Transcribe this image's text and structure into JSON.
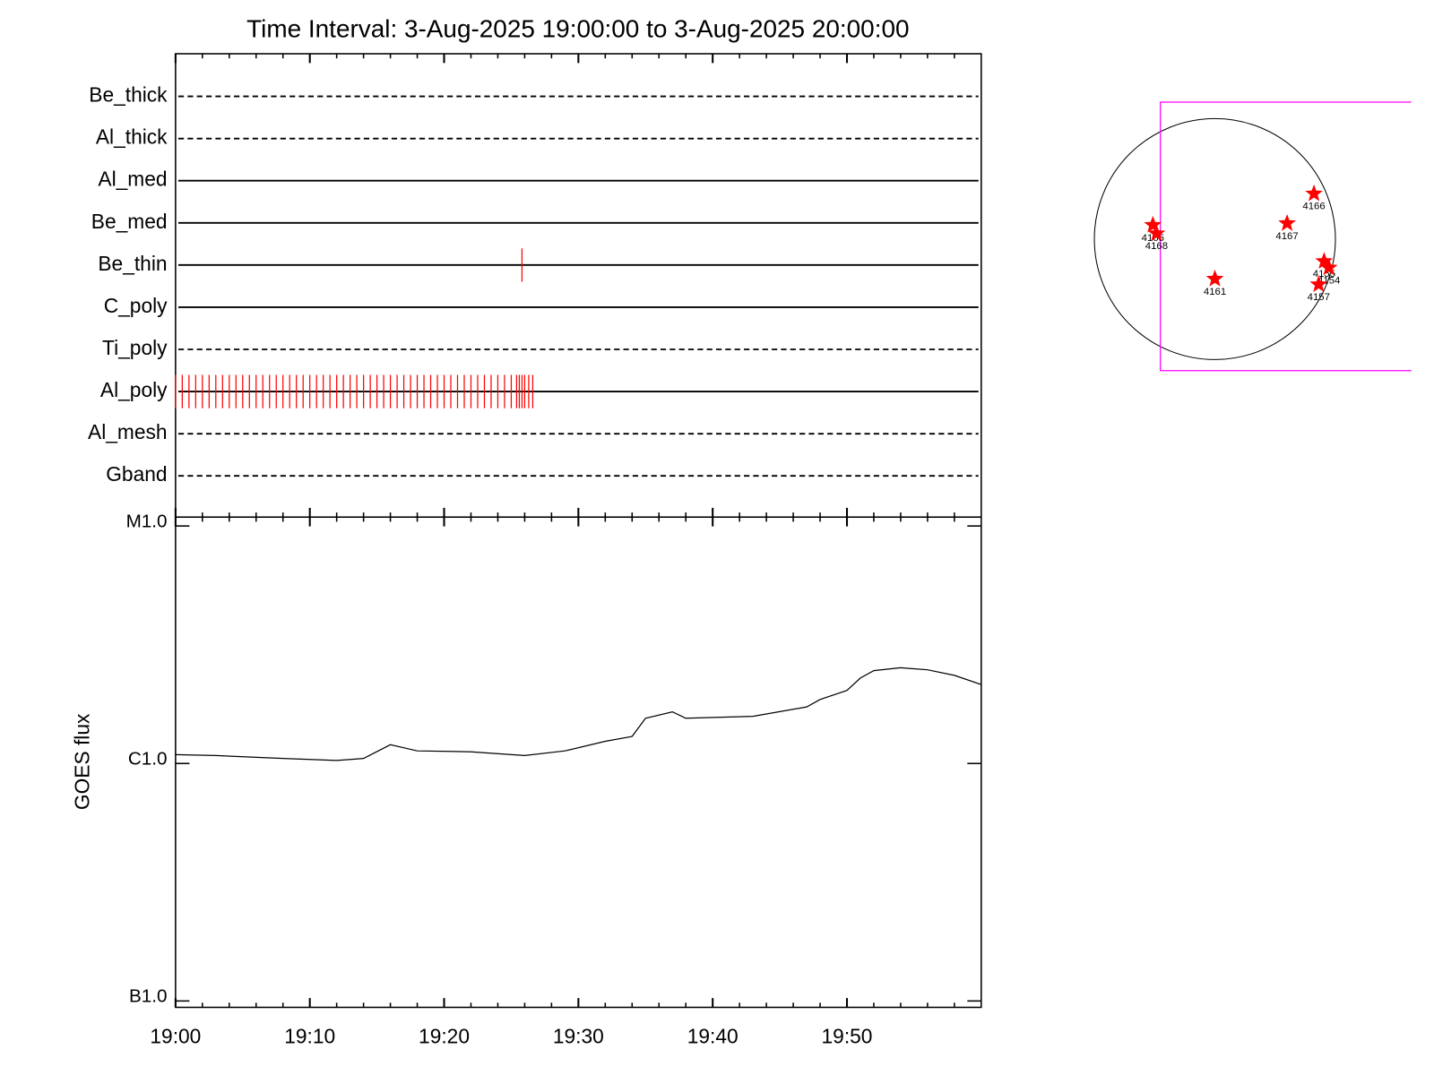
{
  "chart_data": [
    {
      "type": "timeline",
      "title": "Time Interval:  3-Aug-2025 19:00:00 to  3-Aug-2025 20:00:00",
      "xlim": [
        0,
        60
      ],
      "xticks": [
        0,
        10,
        20,
        30,
        40,
        50
      ],
      "xminorticks": [
        2,
        4,
        6,
        8,
        12,
        14,
        16,
        18,
        22,
        24,
        26,
        28,
        32,
        34,
        36,
        38,
        42,
        44,
        46,
        48,
        52,
        54,
        56,
        58
      ],
      "event_color": "#ff0000",
      "series": [
        {
          "name": "Be_thick",
          "line_style": "dashed",
          "x": []
        },
        {
          "name": "Al_thick",
          "line_style": "dashed",
          "x": []
        },
        {
          "name": "Al_med",
          "line_style": "solid",
          "x": []
        },
        {
          "name": "Be_med",
          "line_style": "solid",
          "x": []
        },
        {
          "name": "Be_thin",
          "line_style": "solid",
          "x": [
            25.8
          ]
        },
        {
          "name": "C_poly",
          "line_style": "solid",
          "x": []
        },
        {
          "name": "Ti_poly",
          "line_style": "dashed",
          "x": []
        },
        {
          "name": "Al_poly",
          "line_style": "solid",
          "x": [
            0,
            0.5,
            1,
            1.5,
            2,
            2.5,
            3,
            3.5,
            4,
            4.5,
            5,
            5.5,
            6,
            6.5,
            7,
            7.5,
            8,
            8.5,
            9,
            9.5,
            10,
            10.5,
            11,
            11.5,
            12,
            12.5,
            13,
            13.5,
            14,
            14.5,
            15,
            15.5,
            16,
            16.5,
            17,
            17.5,
            18,
            18.5,
            19,
            19.5,
            20,
            20.5,
            21,
            21.5,
            22,
            22.5,
            23,
            23.5,
            24,
            24.5,
            25,
            25.4,
            25.6,
            25.8,
            26,
            26.3,
            26.6
          ]
        },
        {
          "name": "Al_mesh",
          "line_style": "dashed",
          "x": []
        },
        {
          "name": "Gband",
          "line_style": "dashed",
          "x": []
        }
      ]
    },
    {
      "type": "line",
      "ylabel": "GOES flux",
      "log_scale": true,
      "color": "#000000",
      "xlim": [
        0,
        60
      ],
      "xticks": [
        {
          "value": 0,
          "label": "19:00"
        },
        {
          "value": 10,
          "label": "19:10"
        },
        {
          "value": 20,
          "label": "19:20"
        },
        {
          "value": 30,
          "label": "19:30"
        },
        {
          "value": 40,
          "label": "19:40"
        },
        {
          "value": 50,
          "label": "19:50"
        }
      ],
      "xminorticks": [
        2,
        4,
        6,
        8,
        12,
        14,
        16,
        18,
        22,
        24,
        26,
        28,
        32,
        34,
        36,
        38,
        42,
        44,
        46,
        48,
        52,
        54,
        56,
        58
      ],
      "ylim": [
        9.4e-08,
        1.09e-05
      ],
      "yticks": [
        {
          "value": 1e-07,
          "label": "B1.0"
        },
        {
          "value": 1e-06,
          "label": "C1.0"
        },
        {
          "value": 1e-05,
          "label": "M1.0"
        }
      ],
      "x": [
        0,
        3,
        8,
        12,
        14,
        16,
        18,
        22,
        26,
        29,
        32,
        34,
        35,
        37,
        38,
        43,
        47,
        48,
        50,
        51,
        52,
        54,
        56,
        58,
        60
      ],
      "values": [
        1.09e-06,
        1.08e-06,
        1.05e-06,
        1.03e-06,
        1.05e-06,
        1.2e-06,
        1.13e-06,
        1.12e-06,
        1.08e-06,
        1.13e-06,
        1.24e-06,
        1.3e-06,
        1.55e-06,
        1.65e-06,
        1.55e-06,
        1.58e-06,
        1.73e-06,
        1.86e-06,
        2.03e-06,
        2.29e-06,
        2.46e-06,
        2.53e-06,
        2.48e-06,
        2.35e-06,
        2.15e-06
      ]
    },
    {
      "type": "map",
      "solar_radius": 950,
      "fov": {
        "xlim": [
          -430,
          1548
        ],
        "ylim": [
          -1037,
          1080
        ],
        "color": "#ff00ff"
      },
      "marker_color": "#ff0000",
      "points": [
        {
          "label": "4165",
          "x": -489,
          "y": 110
        },
        {
          "label": "4168",
          "x": -460,
          "y": 44
        },
        {
          "label": "4166",
          "x": 781,
          "y": 358
        },
        {
          "label": "4167",
          "x": 569,
          "y": 124
        },
        {
          "label": "4161",
          "x": 0,
          "y": -314
        },
        {
          "label": "4155",
          "x": 861,
          "y": -175
        },
        {
          "label": "4154",
          "x": 898,
          "y": -226
        },
        {
          "label": "4157",
          "x": 818,
          "y": -358
        }
      ]
    }
  ]
}
